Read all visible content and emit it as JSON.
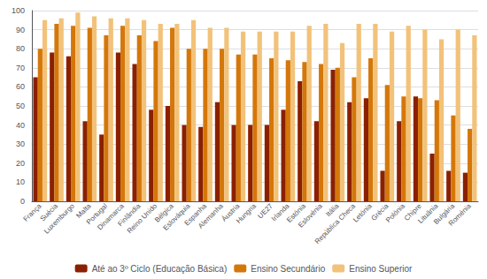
{
  "chart_data": {
    "type": "bar",
    "categories": [
      "França",
      "Suécia",
      "Luxemburgo",
      "Malta",
      "Portugal",
      "Dinamarca",
      "Finlândia",
      "Reino Unido",
      "Bélgica",
      "Eslováquia",
      "Espanha",
      "Alemanha",
      "Áustria",
      "Hungria",
      "UE27",
      "Irlanda",
      "Estónia",
      "Eslovénia",
      "Itália",
      "República Checa",
      "Letónia",
      "Grécia",
      "Polónia",
      "Chipre",
      "Lituânia",
      "Bulgária",
      "Roménia"
    ],
    "series": [
      {
        "name": "Até ao 3º Ciclo (Educação Básica)",
        "color": "#8B2000",
        "values": [
          65,
          78,
          76,
          42,
          35,
          78,
          72,
          48,
          50,
          40,
          39,
          52,
          40,
          40,
          40,
          48,
          63,
          42,
          69,
          52,
          54,
          16,
          42,
          55,
          25,
          16,
          15
        ]
      },
      {
        "name": "Ensino Secundário",
        "color": "#D4770A",
        "values": [
          80,
          93,
          92,
          91,
          87,
          92,
          87,
          84,
          91,
          80,
          80,
          80,
          77,
          77,
          75,
          74,
          73,
          72,
          70,
          65,
          75,
          61,
          55,
          54,
          53,
          45,
          38
        ]
      },
      {
        "name": "Ensino Superior",
        "color": "#F2C27A",
        "values": [
          95,
          96,
          99,
          97,
          96,
          96,
          95,
          93,
          93,
          95,
          91,
          91,
          89,
          89,
          89,
          89,
          92,
          93,
          83,
          93,
          93,
          89,
          92,
          90,
          85,
          90,
          87
        ]
      }
    ],
    "ylim": [
      0,
      100
    ],
    "yticks": [
      0,
      10,
      20,
      30,
      40,
      50,
      60,
      70,
      80,
      90,
      100
    ],
    "grid": true,
    "legend": "bottom"
  }
}
